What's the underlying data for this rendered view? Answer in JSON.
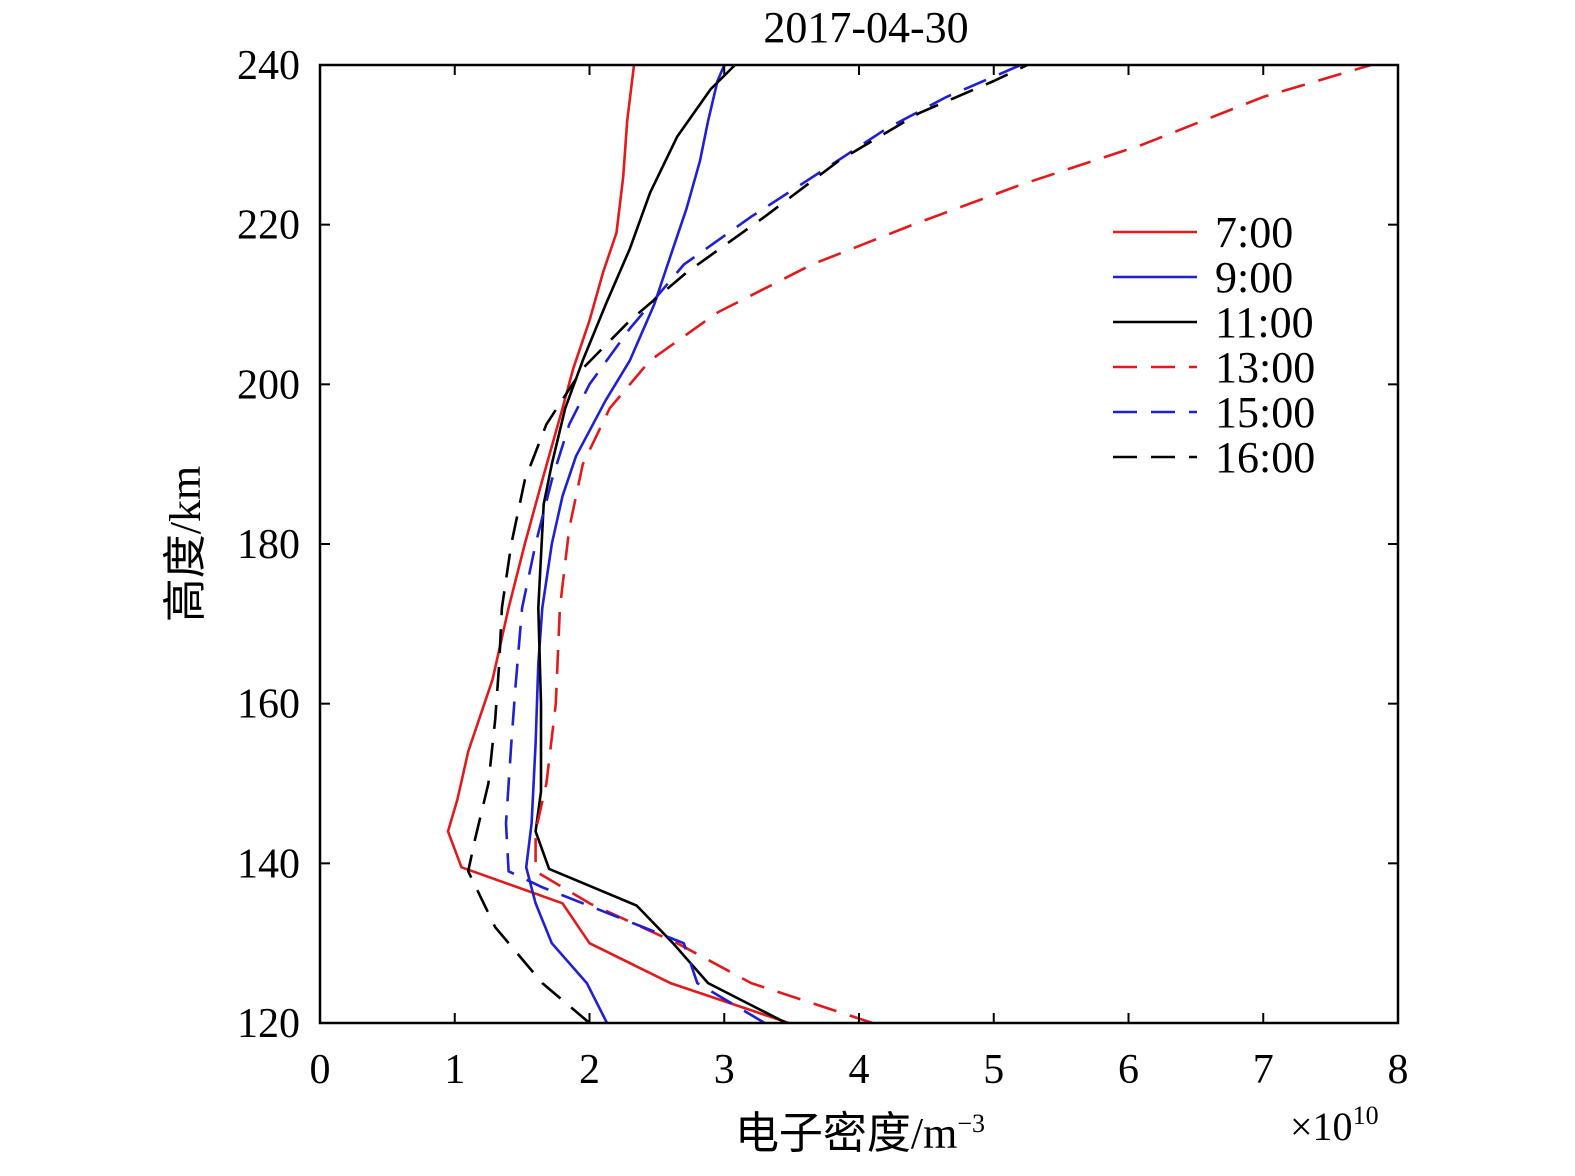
{
  "chart_data": {
    "type": "line",
    "title": "2017-04-30",
    "xlabel": "电子密度/m",
    "xlabel_sup": "−3",
    "ylabel": "高度/km",
    "x_multiplier_base": "×10",
    "x_multiplier_exp": "10",
    "xlim": [
      0,
      8
    ],
    "ylim": [
      120,
      240
    ],
    "xticks": [
      "0",
      "1",
      "2",
      "3",
      "4",
      "5",
      "6",
      "7",
      "8"
    ],
    "yticks": [
      "120",
      "140",
      "160",
      "180",
      "200",
      "220",
      "240"
    ],
    "grid": false,
    "legend_position": "top-right",
    "series": [
      {
        "name": "7:00",
        "color": "#e31a1c",
        "dash": "solid",
        "points": [
          [
            3.48,
            120
          ],
          [
            2.6,
            125
          ],
          [
            2.0,
            130
          ],
          [
            1.8,
            135
          ],
          [
            1.05,
            139.5
          ],
          [
            0.95,
            144
          ],
          [
            1.02,
            148
          ],
          [
            1.1,
            154
          ],
          [
            1.28,
            163
          ],
          [
            1.4,
            172
          ],
          [
            1.52,
            180
          ],
          [
            1.65,
            188
          ],
          [
            1.8,
            197
          ],
          [
            1.88,
            202
          ],
          [
            2.0,
            208
          ],
          [
            2.1,
            214
          ],
          [
            2.2,
            219
          ],
          [
            2.25,
            226
          ],
          [
            2.28,
            233
          ],
          [
            2.33,
            240
          ]
        ]
      },
      {
        "name": "9:00",
        "color": "#1f1fd6",
        "dash": "solid",
        "points": [
          [
            2.13,
            120
          ],
          [
            1.98,
            125
          ],
          [
            1.72,
            130
          ],
          [
            1.6,
            135
          ],
          [
            1.53,
            139.5
          ],
          [
            1.57,
            145
          ],
          [
            1.6,
            155
          ],
          [
            1.62,
            165
          ],
          [
            1.65,
            172
          ],
          [
            1.72,
            180
          ],
          [
            1.8,
            186
          ],
          [
            1.9,
            191
          ],
          [
            2.12,
            198
          ],
          [
            2.3,
            203
          ],
          [
            2.48,
            210
          ],
          [
            2.62,
            217
          ],
          [
            2.72,
            222
          ],
          [
            2.82,
            228
          ],
          [
            2.88,
            233
          ],
          [
            2.95,
            238
          ],
          [
            3.0,
            240
          ]
        ]
      },
      {
        "name": "11:00",
        "color": "#000000",
        "dash": "solid",
        "points": [
          [
            3.46,
            120
          ],
          [
            2.88,
            125
          ],
          [
            2.62,
            130
          ],
          [
            2.35,
            134.7
          ],
          [
            1.7,
            139.3
          ],
          [
            1.6,
            144
          ],
          [
            1.64,
            149
          ],
          [
            1.64,
            160
          ],
          [
            1.62,
            172
          ],
          [
            1.66,
            185
          ],
          [
            1.72,
            190
          ],
          [
            1.82,
            197
          ],
          [
            1.95,
            203
          ],
          [
            2.12,
            210
          ],
          [
            2.3,
            217
          ],
          [
            2.45,
            224
          ],
          [
            2.65,
            231
          ],
          [
            2.9,
            237
          ],
          [
            3.08,
            240
          ]
        ]
      },
      {
        "name": "13:00",
        "color": "#e31a1c",
        "dash": "dashed",
        "points": [
          [
            4.1,
            120
          ],
          [
            3.2,
            125
          ],
          [
            2.65,
            130
          ],
          [
            2.0,
            135
          ],
          [
            1.6,
            139
          ],
          [
            1.6,
            144
          ],
          [
            1.68,
            150
          ],
          [
            1.75,
            160
          ],
          [
            1.78,
            172
          ],
          [
            1.85,
            182
          ],
          [
            1.95,
            190
          ],
          [
            2.15,
            197
          ],
          [
            2.45,
            203
          ],
          [
            2.95,
            209
          ],
          [
            3.65,
            215
          ],
          [
            4.4,
            220
          ],
          [
            5.2,
            225
          ],
          [
            6.1,
            230
          ],
          [
            7.0,
            236
          ],
          [
            7.8,
            240
          ]
        ]
      },
      {
        "name": "15:00",
        "color": "#1f1fd6",
        "dash": "dashed",
        "points": [
          [
            3.3,
            120
          ],
          [
            2.8,
            125
          ],
          [
            2.7,
            130
          ],
          [
            1.65,
            137
          ],
          [
            1.4,
            139
          ],
          [
            1.38,
            145
          ],
          [
            1.42,
            155
          ],
          [
            1.45,
            162
          ],
          [
            1.5,
            172
          ],
          [
            1.6,
            180
          ],
          [
            1.72,
            188
          ],
          [
            1.85,
            195
          ],
          [
            2.0,
            200
          ],
          [
            2.3,
            207
          ],
          [
            2.7,
            215
          ],
          [
            3.2,
            221
          ],
          [
            3.75,
            227
          ],
          [
            4.2,
            232
          ],
          [
            4.65,
            236
          ],
          [
            5.2,
            240
          ]
        ]
      },
      {
        "name": "16:00",
        "color": "#000000",
        "dash": "dashed",
        "points": [
          [
            2.0,
            120
          ],
          [
            1.65,
            125
          ],
          [
            1.3,
            132
          ],
          [
            1.1,
            139
          ],
          [
            1.15,
            143
          ],
          [
            1.25,
            150
          ],
          [
            1.3,
            158
          ],
          [
            1.33,
            165
          ],
          [
            1.35,
            172
          ],
          [
            1.42,
            180
          ],
          [
            1.52,
            188
          ],
          [
            1.68,
            195
          ],
          [
            1.95,
            202
          ],
          [
            2.3,
            208
          ],
          [
            2.72,
            214
          ],
          [
            3.3,
            221
          ],
          [
            3.85,
            228
          ],
          [
            4.45,
            234
          ],
          [
            5.0,
            238
          ],
          [
            5.25,
            240
          ]
        ]
      }
    ]
  }
}
